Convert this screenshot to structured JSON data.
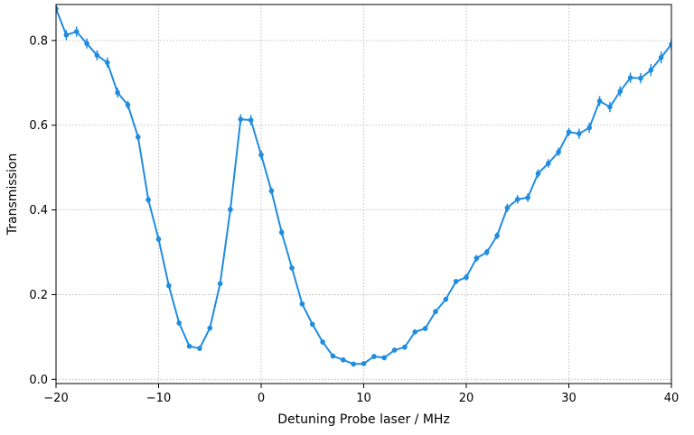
{
  "chart_data": {
    "type": "line",
    "title": "",
    "xlabel": "Detuning Probe laser / MHz",
    "ylabel": "Transmission",
    "xlim": [
      -20,
      40
    ],
    "ylim": [
      -0.01,
      0.885
    ],
    "xticks": [
      -20,
      -10,
      0,
      10,
      20,
      30,
      40
    ],
    "yticks": [
      0.0,
      0.2,
      0.4,
      0.6,
      0.8
    ],
    "xtick_labels": [
      "−20",
      "−10",
      "0",
      "10",
      "20",
      "30",
      "40"
    ],
    "ytick_labels": [
      "0.0",
      "0.2",
      "0.4",
      "0.6",
      "0.8"
    ],
    "grid": true,
    "legend": "none",
    "series": [
      {
        "color": "#1f8ce0",
        "marker": "circle",
        "error_bars": true,
        "x": [
          -20,
          -19,
          -18,
          -17,
          -16,
          -15,
          -14,
          -13,
          -12,
          -11,
          -10,
          -9,
          -8,
          -7,
          -6,
          -5,
          -4,
          -3,
          -2,
          -1,
          0,
          1,
          2,
          3,
          4,
          5,
          6,
          7,
          8,
          9,
          10,
          11,
          12,
          13,
          14,
          15,
          16,
          17,
          18,
          19,
          20,
          21,
          22,
          23,
          24,
          25,
          26,
          27,
          28,
          29,
          30,
          31,
          32,
          33,
          34,
          35,
          36,
          37,
          38,
          39,
          40
        ],
        "y": [
          0.875,
          0.813,
          0.821,
          0.793,
          0.765,
          0.748,
          0.677,
          0.648,
          0.572,
          0.424,
          0.331,
          0.221,
          0.133,
          0.078,
          0.073,
          0.121,
          0.226,
          0.401,
          0.614,
          0.612,
          0.53,
          0.445,
          0.347,
          0.263,
          0.178,
          0.13,
          0.088,
          0.055,
          0.046,
          0.036,
          0.037,
          0.054,
          0.051,
          0.069,
          0.076,
          0.112,
          0.12,
          0.16,
          0.189,
          0.231,
          0.241,
          0.286,
          0.3,
          0.339,
          0.405,
          0.425,
          0.429,
          0.486,
          0.51,
          0.537,
          0.584,
          0.58,
          0.594,
          0.657,
          0.643,
          0.68,
          0.712,
          0.711,
          0.73,
          0.76,
          0.791
        ],
        "yerr": [
          0.01,
          0.012,
          0.012,
          0.012,
          0.012,
          0.012,
          0.012,
          0.01,
          0.008,
          0.008,
          0.008,
          0.006,
          0.006,
          0.006,
          0.006,
          0.006,
          0.006,
          0.008,
          0.012,
          0.012,
          0.01,
          0.008,
          0.008,
          0.006,
          0.006,
          0.006,
          0.006,
          0.006,
          0.006,
          0.006,
          0.006,
          0.006,
          0.006,
          0.006,
          0.006,
          0.006,
          0.006,
          0.006,
          0.006,
          0.006,
          0.008,
          0.008,
          0.008,
          0.008,
          0.01,
          0.01,
          0.01,
          0.01,
          0.01,
          0.01,
          0.01,
          0.012,
          0.012,
          0.012,
          0.012,
          0.012,
          0.012,
          0.012,
          0.014,
          0.014,
          0.014
        ]
      }
    ]
  }
}
